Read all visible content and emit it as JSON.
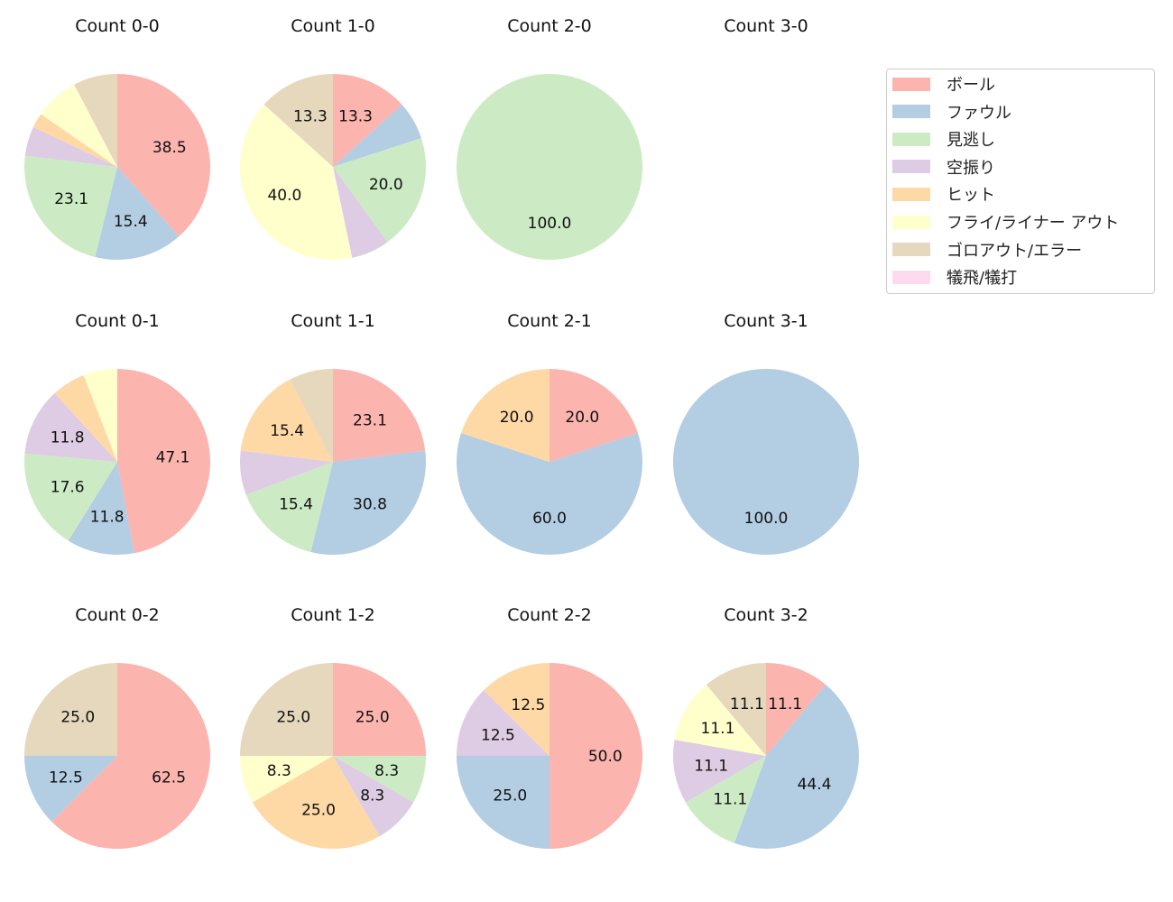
{
  "chart_data": [
    {
      "type": "pie",
      "title": "Count 0-0",
      "values": [
        38.5,
        15.4,
        23.1,
        5.1,
        2.6,
        7.7,
        7.7,
        0
      ]
    },
    {
      "type": "pie",
      "title": "Count 1-0",
      "values": [
        13.3,
        6.7,
        20.0,
        6.7,
        0,
        40.0,
        13.3,
        0
      ]
    },
    {
      "type": "pie",
      "title": "Count 2-0",
      "values": [
        0,
        0,
        100.0,
        0,
        0,
        0,
        0,
        0
      ]
    },
    {
      "type": "pie",
      "title": "Count 3-0",
      "values": [
        0,
        0,
        0,
        0,
        0,
        0,
        0,
        0
      ]
    },
    {
      "type": "pie",
      "title": "Count 0-1",
      "values": [
        47.1,
        11.8,
        17.6,
        11.8,
        5.9,
        5.9,
        0,
        0
      ]
    },
    {
      "type": "pie",
      "title": "Count 1-1",
      "values": [
        23.1,
        30.8,
        15.4,
        7.7,
        15.4,
        0,
        7.7,
        0
      ]
    },
    {
      "type": "pie",
      "title": "Count 2-1",
      "values": [
        20.0,
        60.0,
        0,
        0,
        20.0,
        0,
        0,
        0
      ]
    },
    {
      "type": "pie",
      "title": "Count 3-1",
      "values": [
        0,
        100.0,
        0,
        0,
        0,
        0,
        0,
        0
      ]
    },
    {
      "type": "pie",
      "title": "Count 0-2",
      "values": [
        62.5,
        12.5,
        0,
        0,
        0,
        0,
        25.0,
        0
      ]
    },
    {
      "type": "pie",
      "title": "Count 1-2",
      "values": [
        25.0,
        0,
        8.3,
        8.3,
        25.0,
        8.3,
        25.0,
        0
      ]
    },
    {
      "type": "pie",
      "title": "Count 2-2",
      "values": [
        50.0,
        25.0,
        0,
        12.5,
        12.5,
        0,
        0,
        0
      ]
    },
    {
      "type": "pie",
      "title": "Count 3-2",
      "values": [
        11.1,
        44.4,
        11.1,
        11.1,
        0,
        11.1,
        11.1,
        0
      ]
    }
  ],
  "categories": [
    "ボール",
    "ファウル",
    "見逃し",
    "空振り",
    "ヒット",
    "フライ/ライナー アウト",
    "ゴロアウト/エラー",
    "犠飛/犠打"
  ],
  "colors": [
    "#fbb4ae",
    "#b3cde3",
    "#ccebc5",
    "#decbe4",
    "#fed9a6",
    "#ffffcc",
    "#e5d8bd",
    "#fddaec"
  ],
  "legend_position": "top-right",
  "label_threshold_percent": 8
}
